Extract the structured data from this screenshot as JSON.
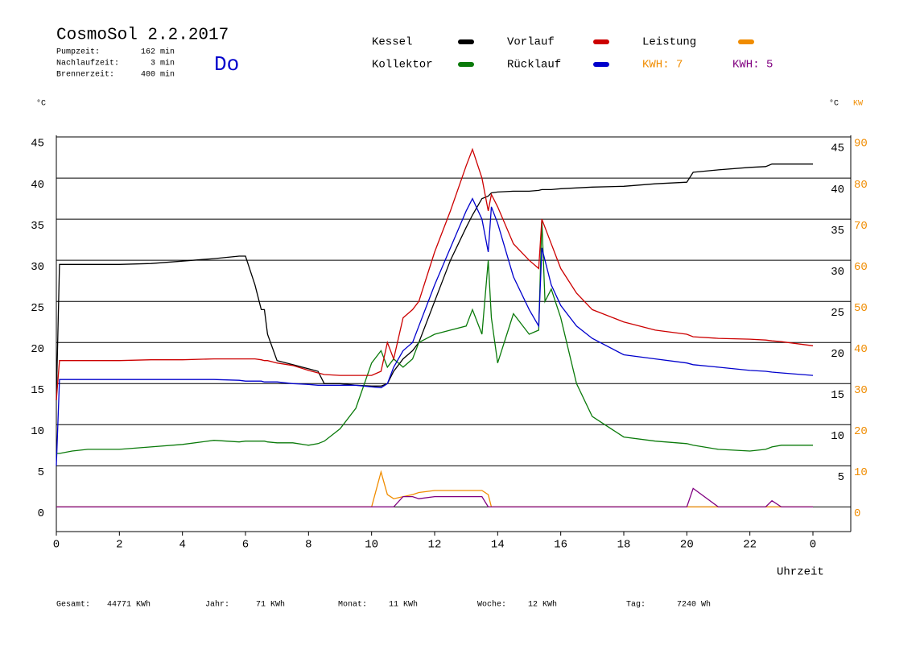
{
  "header": {
    "title": "CosmoSol 2.2.2017",
    "day": "Do",
    "info": [
      {
        "label": "Pumpzeit:",
        "value": "162 min"
      },
      {
        "label": "Nachlaufzeit:",
        "value": "3 min"
      },
      {
        "label": "Brennerzeit:",
        "value": "400 min"
      }
    ],
    "kwh_labels": [
      {
        "text": "KWH: 7",
        "color": "#f08c00"
      },
      {
        "text": "KWH: 5",
        "color": "#800080"
      }
    ]
  },
  "chart_data": {
    "type": "line",
    "y_unit_left": "°C",
    "y_unit_right": "°C",
    "y2_unit": "KW",
    "xlabel": "Uhrzeit",
    "x": [
      0,
      0.1,
      0.5,
      1,
      2,
      3,
      4,
      5,
      5.8,
      6,
      6.3,
      6.5,
      6.6,
      6.7,
      7,
      7.5,
      8,
      8.3,
      8.5,
      9,
      9.5,
      10,
      10.3,
      10.5,
      10.7,
      11,
      11.3,
      11.5,
      12,
      12.5,
      13,
      13.2,
      13.5,
      13.7,
      13.8,
      14,
      14.5,
      15,
      15.3,
      15.4,
      15.5,
      15.7,
      16,
      16.5,
      17,
      18,
      19,
      20,
      20.2,
      21,
      22,
      22.5,
      22.7,
      23,
      24
    ],
    "xlim": [
      0,
      25.2
    ],
    "xticks": [
      0,
      2,
      4,
      6,
      8,
      10,
      12,
      14,
      16,
      18,
      20,
      22,
      {
        "value": 24,
        "label": "0"
      }
    ],
    "ylim": [
      -3,
      45.2
    ],
    "yticks": [
      0,
      5,
      10,
      15,
      20,
      25,
      30,
      35,
      40,
      45
    ],
    "y_right_ticks": [
      5,
      10,
      15,
      20,
      25,
      30,
      35,
      40,
      45
    ],
    "y2lim": [
      -6,
      90.4
    ],
    "y2ticks": [
      0,
      10,
      20,
      30,
      40,
      50,
      60,
      70,
      80,
      90
    ],
    "grid": true,
    "series": [
      {
        "name": "Kessel",
        "color": "#000000",
        "values": [
          13,
          29.5,
          29.5,
          29.5,
          29.5,
          29.6,
          29.9,
          30.2,
          30.5,
          30.5,
          27,
          24,
          24,
          21,
          17.8,
          17.3,
          16.8,
          16.5,
          15,
          15,
          14.8,
          14.7,
          14.7,
          15,
          16.5,
          18,
          19,
          20,
          25,
          30,
          34,
          35.5,
          37.5,
          37.8,
          38.2,
          38.3,
          38.4,
          38.4,
          38.5,
          38.6,
          38.6,
          38.6,
          38.7,
          38.8,
          38.9,
          39,
          39.3,
          39.5,
          40.7,
          41,
          41.3,
          41.4,
          41.7,
          41.7,
          41.7
        ]
      },
      {
        "name": "Kollektor",
        "color": "#0a7a0a",
        "values": [
          6.5,
          6.5,
          6.8,
          7,
          7,
          7.3,
          7.6,
          8.1,
          7.9,
          8,
          8,
          8,
          8,
          7.9,
          7.8,
          7.8,
          7.5,
          7.7,
          8,
          9.5,
          12,
          17.5,
          19,
          17,
          18,
          17,
          18,
          20,
          21,
          21.5,
          22,
          24,
          21,
          30,
          23,
          17.5,
          23.5,
          21,
          21.5,
          35,
          25,
          26.5,
          23,
          15,
          11,
          8.5,
          8,
          7.7,
          7.5,
          7,
          6.8,
          7,
          7.3,
          7.5,
          7.5
        ]
      },
      {
        "name": "Vorlauf",
        "color": "#cc0000",
        "values": [
          13,
          17.8,
          17.8,
          17.8,
          17.8,
          17.9,
          17.9,
          18,
          18,
          18,
          18,
          17.9,
          17.8,
          17.8,
          17.5,
          17.2,
          16.6,
          16.3,
          16.1,
          16,
          16,
          16,
          16.5,
          20,
          18,
          23,
          24,
          25,
          31,
          36,
          41.5,
          43.5,
          40,
          36,
          38,
          36.5,
          32,
          30,
          29,
          35,
          34,
          32,
          29,
          26,
          24,
          22.5,
          21.5,
          21,
          20.7,
          20.5,
          20.4,
          20.3,
          20.2,
          20.1,
          19.6
        ]
      },
      {
        "name": "Rücklauf",
        "color": "#0000cc",
        "values": [
          5,
          15.5,
          15.5,
          15.5,
          15.5,
          15.5,
          15.5,
          15.5,
          15.4,
          15.3,
          15.3,
          15.3,
          15.2,
          15.2,
          15.2,
          15,
          14.9,
          14.8,
          14.8,
          14.8,
          14.8,
          14.6,
          14.5,
          15,
          17,
          19,
          20,
          22,
          27,
          31.5,
          36,
          37.5,
          35,
          31,
          36.5,
          34.5,
          28,
          24,
          22,
          31.5,
          30,
          27,
          24.5,
          22,
          20.5,
          18.5,
          18,
          17.5,
          17.3,
          17,
          16.6,
          16.5,
          16.4,
          16.3,
          16
        ]
      },
      {
        "name": "Leistung",
        "color": "#f08c00",
        "axis": "y2",
        "values": [
          0,
          0,
          0,
          0,
          0,
          0,
          0,
          0,
          0,
          0,
          0,
          0,
          0,
          0,
          0,
          0,
          0,
          0,
          0,
          0,
          0,
          0,
          8.5,
          3,
          2,
          2.5,
          3,
          3.5,
          4,
          4,
          4,
          4,
          4,
          3,
          0,
          0,
          0,
          0,
          0,
          0,
          0,
          0,
          0,
          0,
          0,
          0,
          0,
          0,
          0,
          0,
          0,
          0,
          0,
          0,
          0
        ]
      },
      {
        "color": "#800080",
        "axis": "y2",
        "values": [
          0,
          0,
          0,
          0,
          0,
          0,
          0,
          0,
          0,
          0,
          0,
          0,
          0,
          0,
          0,
          0,
          0,
          0,
          0,
          0,
          0,
          0,
          0,
          0,
          0,
          2.5,
          2.5,
          2,
          2.5,
          2.5,
          2.5,
          2.5,
          2.5,
          0,
          0,
          0,
          0,
          0,
          0,
          0,
          0,
          0,
          0,
          0,
          0,
          0,
          0,
          0,
          4.5,
          0,
          0,
          0,
          1.5,
          0,
          0
        ]
      }
    ]
  },
  "footer": [
    {
      "label": "Gesamt:",
      "value": "44771 KWh"
    },
    {
      "label": "Jahr:",
      "value": "71 KWh"
    },
    {
      "label": "Monat:",
      "value": "11 KWh"
    },
    {
      "label": "Woche:",
      "value": "12 KWh"
    },
    {
      "label": "Tag:",
      "value": "7240 Wh"
    }
  ]
}
